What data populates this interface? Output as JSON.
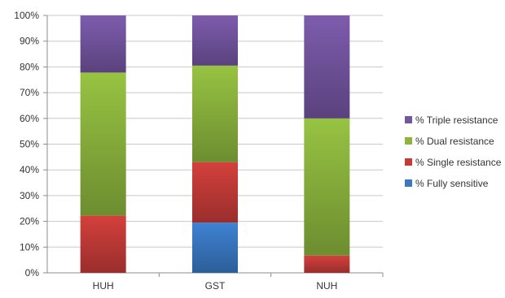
{
  "chart_data": {
    "type": "bar",
    "stacked": true,
    "percent": true,
    "categories": [
      "HUH",
      "GST",
      "NUH"
    ],
    "series": [
      {
        "name": "% Fully sensitive",
        "color": "#3a78c3",
        "values": [
          0,
          19.5,
          0
        ]
      },
      {
        "name": "% Single resistance",
        "color": "#c43b38",
        "values": [
          22.2,
          23.5,
          6.7
        ]
      },
      {
        "name": "% Dual resistance",
        "color": "#8cb53d",
        "values": [
          55.6,
          37.5,
          53.3
        ]
      },
      {
        "name": "% Triple resistance",
        "color": "#7455a0",
        "values": [
          22.2,
          19.5,
          40.0
        ]
      }
    ],
    "legend_order": [
      "% Triple resistance",
      "% Dual resistance",
      "% Single resistance",
      "% Fully sensitive"
    ],
    "legend_position": "right",
    "ylim": [
      0,
      100
    ],
    "yticks": [
      "0%",
      "10%",
      "20%",
      "30%",
      "40%",
      "50%",
      "60%",
      "70%",
      "80%",
      "90%",
      "100%"
    ],
    "grid": true,
    "title": "",
    "xlabel": "",
    "ylabel": ""
  }
}
